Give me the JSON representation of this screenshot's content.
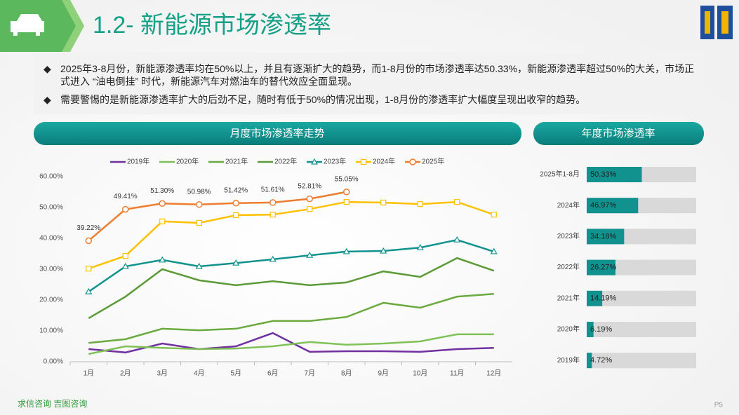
{
  "header": {
    "title": "1.2- 新能源市场渗透率"
  },
  "bullets": [
    "2025年3-8月份，新能源渗透率均在50%以上，并且有逐渐扩大的趋势，而1-8月份的市场渗透率达50.33%，新能源渗透率超过50%的大关，市场正式进入 “油电倒挂” 时代，新能源汽车对燃油车的替代效应全面显现。",
    "需要警惕的是新能源渗透率扩大的后劲不足，随时有低于50%的情况出现，1-8月份的渗透率扩大幅度呈现出收窄的趋势。"
  ],
  "footer": {
    "source": "求信咨询  吉图咨询",
    "page": "P5"
  },
  "chart_data": [
    {
      "type": "line",
      "title": "月度市场渗透率走势",
      "categories": [
        "1月",
        "2月",
        "3月",
        "4月",
        "5月",
        "6月",
        "7月",
        "8月",
        "9月",
        "10月",
        "11月",
        "12月"
      ],
      "ylim": [
        0,
        60
      ],
      "yticks": [
        {
          "value": 0,
          "label": "0.00%"
        },
        {
          "value": 10,
          "label": "10.00%"
        },
        {
          "value": 20,
          "label": "20.00%"
        },
        {
          "value": 30,
          "label": "30.00%"
        },
        {
          "value": 40,
          "label": "40.00%"
        },
        {
          "value": 50,
          "label": "50.00%"
        },
        {
          "value": 60,
          "label": "60.00%"
        }
      ],
      "legend": "top",
      "series": [
        {
          "name": "2019年",
          "color": "#7030a0",
          "marker": "none",
          "values": [
            4.1,
            3.0,
            5.9,
            4.1,
            5.0,
            9.3,
            3.2,
            3.4,
            3.4,
            3.2,
            4.1,
            4.5
          ]
        },
        {
          "name": "2020年",
          "color": "#80c157",
          "marker": "none",
          "values": [
            2.5,
            5.0,
            4.5,
            4.1,
            4.3,
            5.0,
            6.4,
            5.5,
            5.9,
            6.6,
            8.9,
            8.9
          ]
        },
        {
          "name": "2021年",
          "color": "#6aaa3e",
          "marker": "none",
          "values": [
            6.1,
            7.3,
            10.7,
            10.2,
            10.7,
            13.2,
            13.2,
            14.5,
            19.1,
            17.5,
            21.1,
            22.0
          ]
        },
        {
          "name": "2022年",
          "color": "#5b9a37",
          "marker": "none",
          "values": [
            14.1,
            21.1,
            30.0,
            26.4,
            24.8,
            26.1,
            24.8,
            25.7,
            29.3,
            27.5,
            33.6,
            29.5
          ]
        },
        {
          "name": "2023年",
          "color": "#12928f",
          "marker": "triangle",
          "values": [
            22.7,
            30.9,
            33.0,
            30.9,
            32.0,
            33.2,
            34.5,
            35.7,
            35.9,
            37.0,
            39.5,
            35.7
          ]
        },
        {
          "name": "2024年",
          "color": "#ffc000",
          "marker": "square",
          "values": [
            30.2,
            34.3,
            45.5,
            45.0,
            47.5,
            47.7,
            49.5,
            51.8,
            51.6,
            51.1,
            51.8,
            47.7
          ]
        },
        {
          "name": "2025年",
          "color": "#ed7d31",
          "marker": "circle",
          "values": [
            39.22,
            49.41,
            51.3,
            50.98,
            51.42,
            51.61,
            52.81,
            55.05,
            null,
            null,
            null,
            null
          ],
          "value_labels": [
            "39.22%",
            "49.41%",
            "51.30%",
            "50.98%",
            "51.42%",
            "51.61%",
            "52.81%",
            "55.05%",
            null,
            null,
            null,
            null
          ]
        }
      ]
    },
    {
      "type": "hbar",
      "title": "年度市场渗透率",
      "color": "#12928f",
      "categories": [
        "2025年1-8月",
        "2024年",
        "2023年",
        "2022年",
        "2021年",
        "2020年",
        "2019年"
      ],
      "values": [
        50.33,
        46.97,
        34.18,
        26.27,
        14.19,
        6.19,
        4.72
      ],
      "value_labels": [
        "50.33%",
        "46.97%",
        "34.18%",
        "26.27%",
        "14.19%",
        "6.19%",
        "4.72%"
      ],
      "xlim": [
        0,
        100
      ]
    }
  ]
}
